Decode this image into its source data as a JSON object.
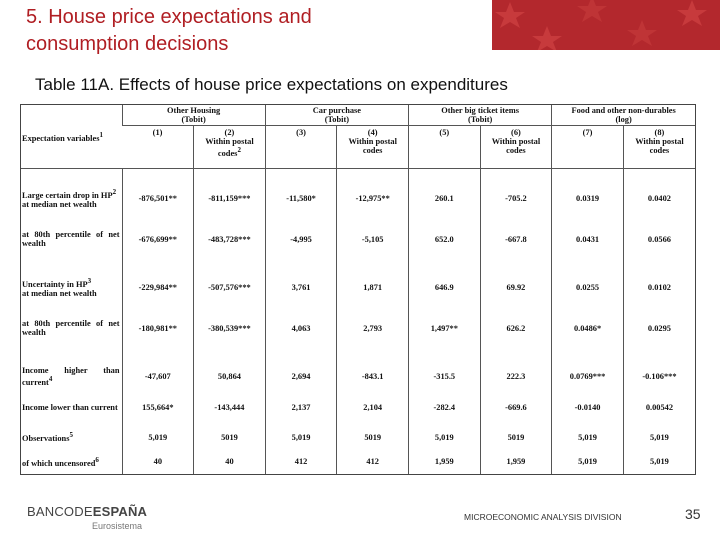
{
  "slide": {
    "title_line1": "5. House price expectations and",
    "title_line2": "consumption decisions",
    "subtitle": "Table 11A. Effects of house price expectations on expenditures"
  },
  "table": {
    "groups": [
      {
        "label": "Other Housing",
        "sub": "(Tobit)"
      },
      {
        "label": "Car purchase",
        "sub": "(Tobit)"
      },
      {
        "label": "Other big ticket items",
        "sub": "(Tobit)"
      },
      {
        "label": "Food and other non-durables",
        "sub": "(log)"
      }
    ],
    "col_header_label": "Expectation variables",
    "col_header_sup": "1",
    "columns": [
      {
        "num": "(1)",
        "note": ""
      },
      {
        "num": "(2)",
        "note": "Within postal codes",
        "sup": "2"
      },
      {
        "num": "(3)",
        "note": ""
      },
      {
        "num": "(4)",
        "note": "Within postal codes"
      },
      {
        "num": "(5)",
        "note": ""
      },
      {
        "num": "(6)",
        "note": "Within postal codes"
      },
      {
        "num": "(7)",
        "note": ""
      },
      {
        "num": "(8)",
        "note": "Within postal codes"
      }
    ],
    "rows": [
      {
        "label": "Large certain drop in HP",
        "sup": "2",
        "label2": "at median net wealth",
        "values": [
          "-876,501**",
          "-811,159***",
          "-11,580*",
          "-12,975**",
          "260.1",
          "-705.2",
          "0.0319",
          "0.0402"
        ]
      },
      {
        "label": "at 80th percentile of net wealth",
        "values": [
          "-676,699**",
          "-483,728***",
          "-4,995",
          "-5,105",
          "652.0",
          "-667.8",
          "0.0431",
          "0.0566"
        ]
      },
      {
        "label": "Uncertainty in HP",
        "sup": "3",
        "label2": "at median net wealth",
        "values": [
          "-229,984**",
          "-507,576***",
          "3,761",
          "1,871",
          "646.9",
          "69.92",
          "0.0255",
          "0.0102"
        ]
      },
      {
        "label": "at 80th percentile of net wealth",
        "values": [
          "-180,981**",
          "-380,539***",
          "4,063",
          "2,793",
          "1,497**",
          "626.2",
          "0.0486*",
          "0.0295"
        ]
      },
      {
        "label": "Income higher than current",
        "sup": "4",
        "values": [
          "-47,607",
          "50,864",
          "2,694",
          "-843.1",
          "-315.5",
          "222.3",
          "0.0769***",
          "-0.106***"
        ]
      },
      {
        "label": "Income lower than current",
        "values": [
          "155,664*",
          "-143,444",
          "2,137",
          "2,104",
          "-282.4",
          "-669.6",
          "-0.0140",
          "0.00542"
        ]
      },
      {
        "label": "Observations",
        "sup": "5",
        "values": [
          "5,019",
          "5019",
          "5,019",
          "5019",
          "5,019",
          "5019",
          "5,019",
          "5,019"
        ]
      },
      {
        "label": "of which uncensored",
        "sup": "6",
        "values": [
          "40",
          "40",
          "412",
          "412",
          "1,959",
          "1,959",
          "5,019",
          "5,019"
        ]
      }
    ]
  },
  "footer": {
    "logo_left": "BANCODE",
    "logo_right": "ESPAÑA",
    "logo_sub": "Eurosistema",
    "division": "MICROECONOMIC ANALYSIS DIVISION",
    "page_number": "35"
  },
  "colors": {
    "title": "#b01e23",
    "banner": "#b3282d"
  }
}
